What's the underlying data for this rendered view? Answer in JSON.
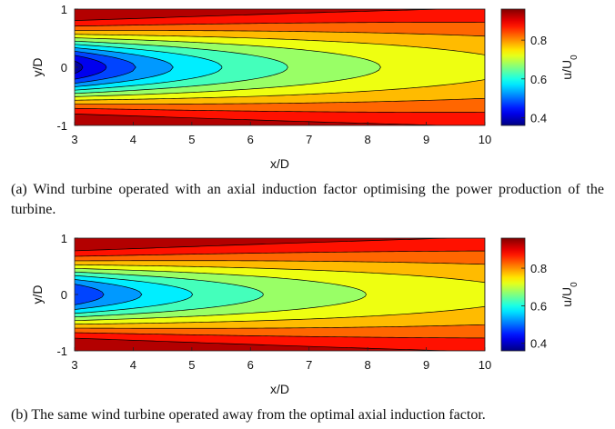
{
  "chart_data": [
    {
      "type": "contour",
      "xlabel": "x/D",
      "ylabel": "y/D",
      "xlim": [
        3,
        10
      ],
      "ylim": [
        -1,
        1
      ],
      "x_ticks": [
        3,
        4,
        5,
        6,
        7,
        8,
        9,
        10
      ],
      "y_ticks": [
        -1,
        0,
        1
      ],
      "colorbar": {
        "label": "u/U0",
        "range": [
          0.36,
          0.96
        ],
        "ticks": [
          0.4,
          0.6,
          0.8
        ],
        "colormap": "jet"
      },
      "field": {
        "centerline_deficit_at_x3": 0.62,
        "deficit_decay_exponent": 0.72,
        "wake_halfwidth_at_x3": 0.42,
        "wake_growth_per_D": 0.045
      },
      "contour_levels": [
        0.4,
        0.45,
        0.5,
        0.55,
        0.6,
        0.65,
        0.7,
        0.75,
        0.8,
        0.85,
        0.9
      ],
      "caption": "(a) Wind turbine operated with an axial induction factor optimising the power production of the turbine."
    },
    {
      "type": "contour",
      "xlabel": "x/D",
      "ylabel": "y/D",
      "xlim": [
        3,
        10
      ],
      "ylim": [
        -1,
        1
      ],
      "x_ticks": [
        3,
        4,
        5,
        6,
        7,
        8,
        9,
        10
      ],
      "y_ticks": [
        -1,
        0,
        1
      ],
      "colorbar": {
        "label": "u/U0",
        "range": [
          0.36,
          0.96
        ],
        "ticks": [
          0.4,
          0.6,
          0.8
        ],
        "colormap": "jet"
      },
      "field": {
        "centerline_deficit_at_x3": 0.55,
        "deficit_decay_exponent": 0.62,
        "wake_halfwidth_at_x3": 0.42,
        "wake_growth_per_D": 0.045
      },
      "contour_levels": [
        0.45,
        0.5,
        0.55,
        0.6,
        0.65,
        0.7,
        0.75,
        0.8,
        0.85,
        0.9
      ],
      "caption": "(b) The same wind turbine operated away from the optimal axial induction factor."
    }
  ]
}
